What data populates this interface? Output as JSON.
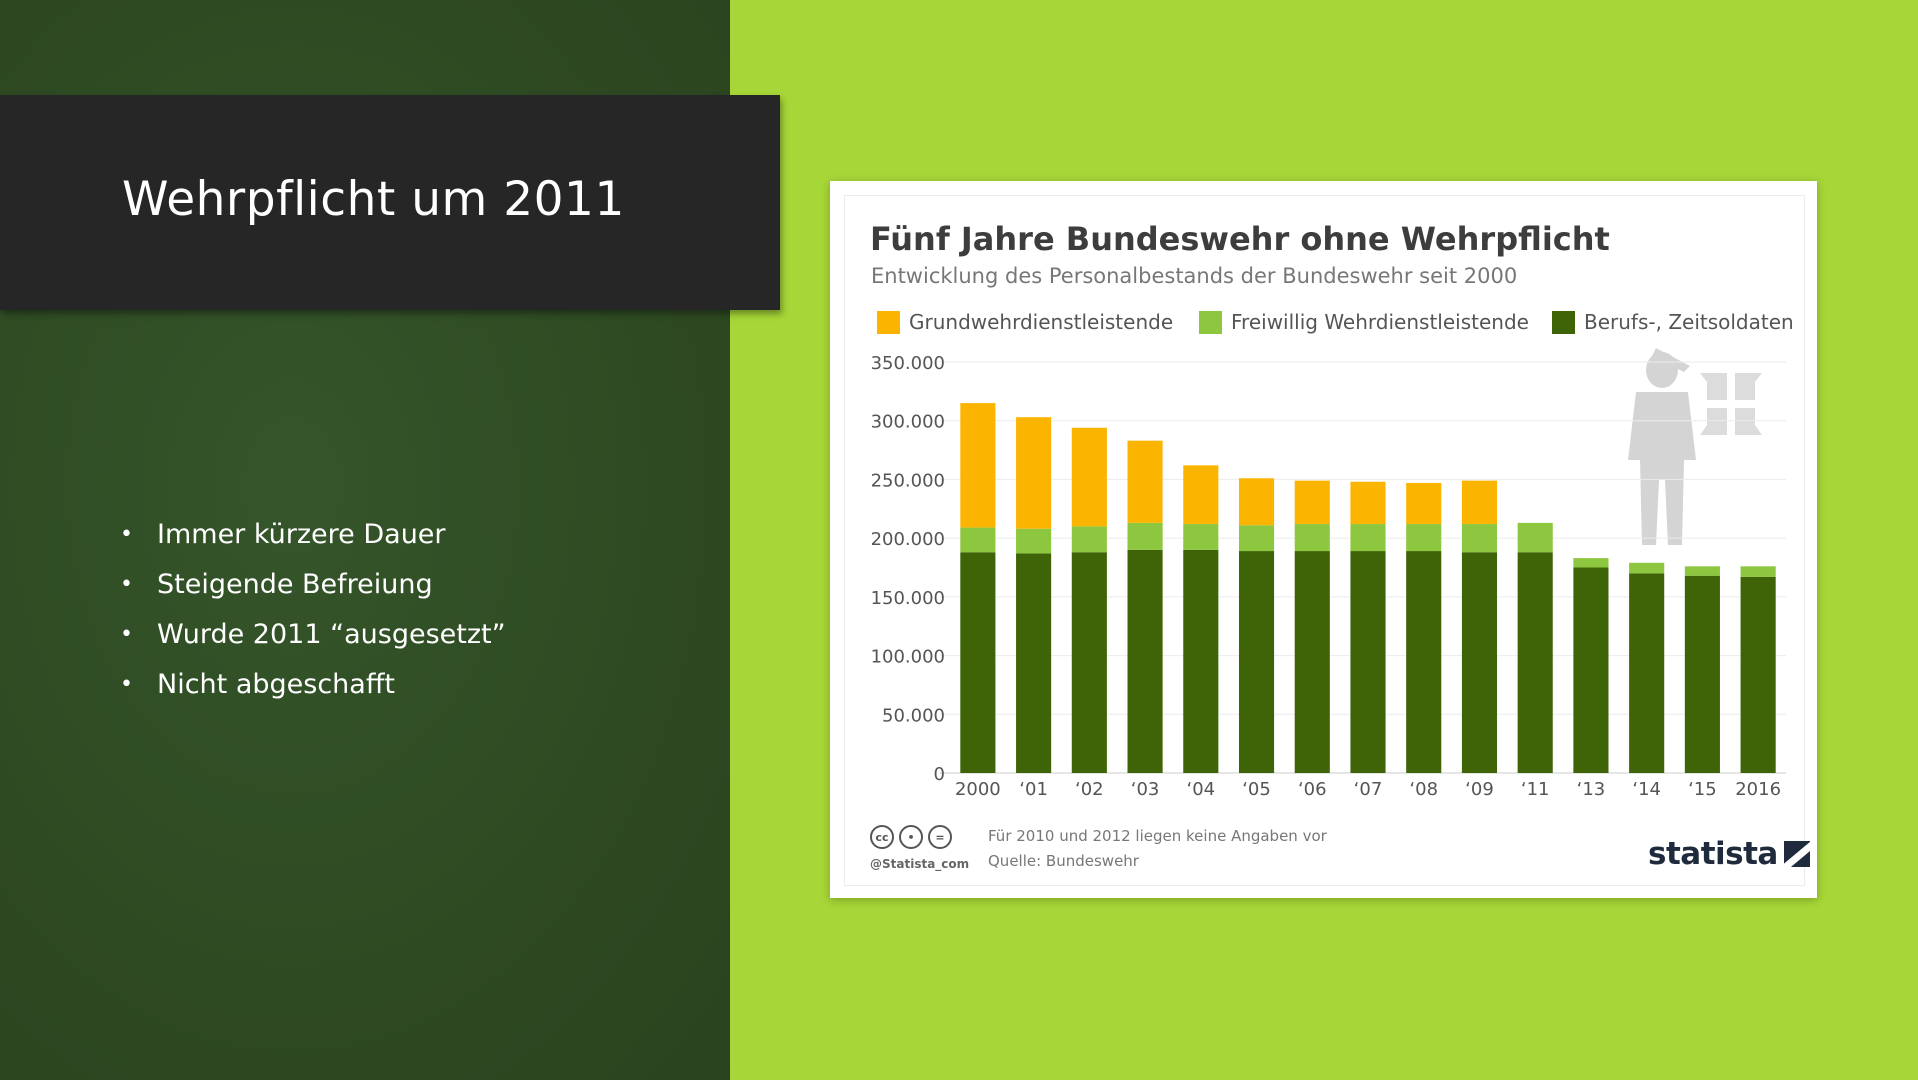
{
  "slide": {
    "title": "Wehrpflicht um 2011",
    "bullets": [
      "Immer kürzere Dauer",
      "Steigende Befreiung",
      "Wurde 2011 “ausgesetzt”",
      "Nicht abgeschafft"
    ]
  },
  "colors": {
    "left_panel": "#2e4a22",
    "right_panel": "#a6d637",
    "title_bar": "#262626",
    "grundwehr": "#fbb400",
    "freiwillig": "#8dc63f",
    "berufs": "#3f6407"
  },
  "footer": {
    "note": "Für 2010 und 2012 liegen keine Angaben vor",
    "source": "Quelle: Bundeswehr",
    "handle": "@Statista_com",
    "brand": "statista",
    "cc_icons": [
      "cc-icon",
      "by-icon",
      "nd-icon"
    ]
  },
  "chart_data": {
    "type": "bar",
    "stacked": true,
    "title": "Fünf Jahre Bundeswehr ohne Wehrpflicht",
    "subtitle": "Entwicklung des Personalbestands der Bundeswehr seit 2000",
    "categories": [
      "2000",
      "‘01",
      "‘02",
      "‘03",
      "‘04",
      "‘05",
      "‘06",
      "‘07",
      "‘08",
      "‘09",
      "‘11",
      "‘13",
      "‘14",
      "‘15",
      "2016"
    ],
    "series": [
      {
        "name": "Berufs-, Zeitsoldaten",
        "color": "#3f6407",
        "values": [
          188000,
          187000,
          188000,
          190000,
          190000,
          189000,
          189000,
          189000,
          189000,
          188000,
          188000,
          175000,
          170000,
          168000,
          167000
        ]
      },
      {
        "name": "Freiwillig Wehrdienstleistende",
        "color": "#8dc63f",
        "values": [
          21000,
          21000,
          22000,
          23000,
          22000,
          22000,
          23000,
          23000,
          23000,
          24000,
          25000,
          8000,
          9000,
          8000,
          9000
        ]
      },
      {
        "name": "Grundwehrdienstleistende",
        "color": "#fbb400",
        "values": [
          106000,
          95000,
          84000,
          70000,
          50000,
          40000,
          37000,
          36000,
          35000,
          37000,
          0,
          0,
          0,
          0,
          0
        ]
      }
    ],
    "legend_order": [
      "Grundwehrdienstleistende",
      "Freiwillig Wehrdienstleistende",
      "Berufs-, Zeitsoldaten"
    ],
    "yticks": [
      "0",
      "50.000",
      "100.000",
      "150.000",
      "200.000",
      "250.000",
      "300.000",
      "350.000"
    ],
    "ylim": [
      0,
      350000
    ],
    "grid": true,
    "legend_position": "top"
  }
}
